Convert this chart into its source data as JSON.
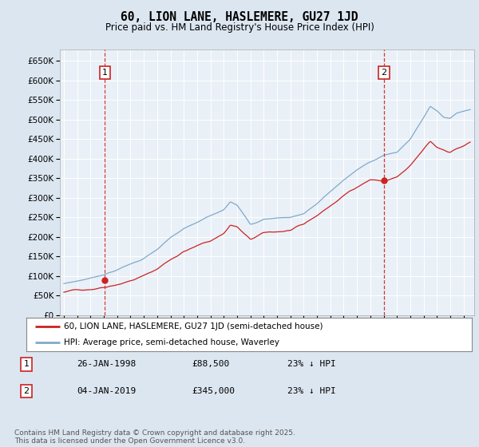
{
  "title": "60, LION LANE, HASLEMERE, GU27 1JD",
  "subtitle": "Price paid vs. HM Land Registry's House Price Index (HPI)",
  "ylim": [
    0,
    680000
  ],
  "yticks": [
    0,
    50000,
    100000,
    150000,
    200000,
    250000,
    300000,
    350000,
    400000,
    450000,
    500000,
    550000,
    600000,
    650000
  ],
  "ytick_labels": [
    "£0",
    "£50K",
    "£100K",
    "£150K",
    "£200K",
    "£250K",
    "£300K",
    "£350K",
    "£400K",
    "£450K",
    "£500K",
    "£550K",
    "£600K",
    "£650K"
  ],
  "hpi_color": "#7eaacc",
  "price_color": "#cc2222",
  "marker1_date": 1998.08,
  "marker1_price": 88500,
  "marker1_label": "26-JAN-1998",
  "marker1_value_str": "£88,500",
  "marker1_pct": "23% ↓ HPI",
  "marker2_date": 2019.01,
  "marker2_price": 345000,
  "marker2_label": "04-JAN-2019",
  "marker2_value_str": "£345,000",
  "marker2_pct": "23% ↓ HPI",
  "legend_line1": "60, LION LANE, HASLEMERE, GU27 1JD (semi-detached house)",
  "legend_line2": "HPI: Average price, semi-detached house, Waverley",
  "footer": "Contains HM Land Registry data © Crown copyright and database right 2025.\nThis data is licensed under the Open Government Licence v3.0.",
  "bg_color": "#dce6f0",
  "plot_bg": "#eaf0f7",
  "grid_color": "#ffffff",
  "annotation_box_color": "#cc2222",
  "xlim_start": 1994.7,
  "xlim_end": 2025.8
}
